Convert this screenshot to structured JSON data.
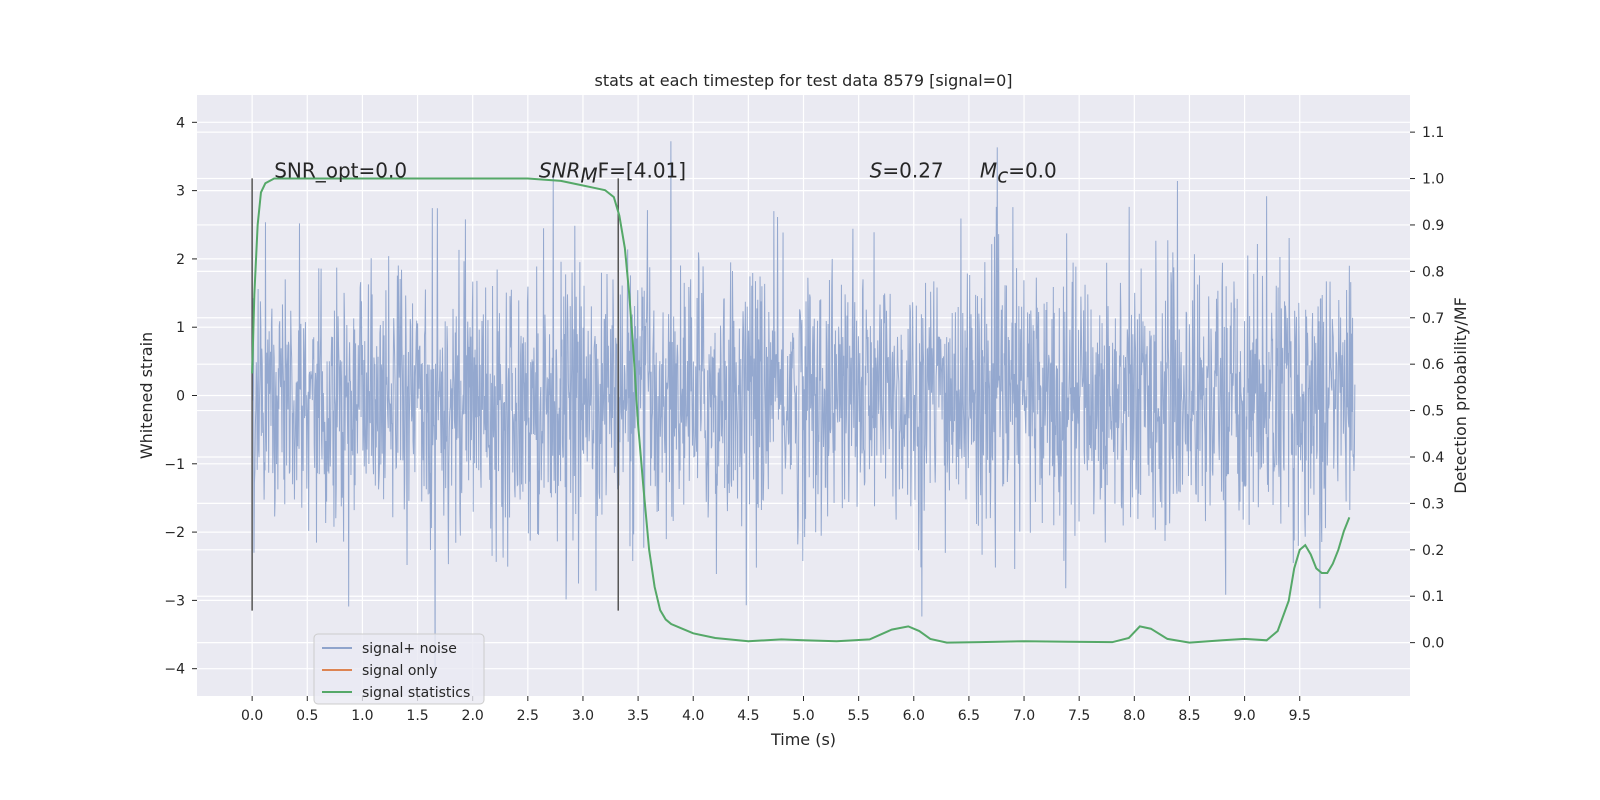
{
  "chart_data": {
    "type": "line",
    "title": "stats at each timestep for test data 8579 [signal=0]",
    "xlabel": "Time (s)",
    "ylabel": "Whitened strain",
    "ylabel_right": "Detection probability/MF",
    "xlim": [
      -0.5,
      10.5
    ],
    "ylim": [
      -4.4,
      4.4
    ],
    "ylim_right": [
      -0.115,
      1.18
    ],
    "xticks": [
      "0.0",
      "0.5",
      "1.0",
      "1.5",
      "2.0",
      "2.5",
      "3.0",
      "3.5",
      "4.0",
      "4.5",
      "5.0",
      "5.5",
      "6.0",
      "6.5",
      "7.0",
      "7.5",
      "8.0",
      "8.5",
      "9.0",
      "9.5"
    ],
    "xtick_values": [
      0,
      0.5,
      1,
      1.5,
      2,
      2.5,
      3,
      3.5,
      4,
      4.5,
      5,
      5.5,
      6,
      6.5,
      7,
      7.5,
      8,
      8.5,
      9,
      9.5
    ],
    "yticks_left": [
      "4",
      "3",
      "2",
      "1",
      "0",
      "−1",
      "−2",
      "−3",
      "−4"
    ],
    "ytick_values_left": [
      4,
      3,
      2,
      1,
      0,
      -1,
      -2,
      -3,
      -4
    ],
    "yticks_right": [
      "1.1",
      "1.0",
      "0.9",
      "0.8",
      "0.7",
      "0.6",
      "0.5",
      "0.4",
      "0.3",
      "0.2",
      "0.1",
      "0.0"
    ],
    "ytick_values_right": [
      1.1,
      1.0,
      0.9,
      0.8,
      0.7,
      0.6,
      0.5,
      0.4,
      0.3,
      0.2,
      0.1,
      0.0
    ],
    "grid": true,
    "legend_position": "lower-left",
    "colors": {
      "background": "#eaeaf2",
      "grid": "#ffffff",
      "signal_noise": "#8fa4cc",
      "signal_only": "#dd8452",
      "signal_statistics": "#55a868",
      "vline": "#555555"
    },
    "series": [
      {
        "name": "signal+ noise",
        "axis": "left",
        "description_values": {
          "t_start": 0.0,
          "t_end": 10.0,
          "typical_range": [
            -2.0,
            2.5
          ],
          "extremes": [
            -4.05,
            4.05
          ]
        }
      },
      {
        "name": "signal only",
        "axis": "left",
        "values": []
      },
      {
        "name": "signal statistics",
        "axis": "right",
        "x": [
          0.0,
          0.02,
          0.05,
          0.08,
          0.12,
          0.2,
          0.35,
          0.6,
          1.0,
          1.5,
          2.0,
          2.5,
          2.8,
          3.0,
          3.1,
          3.2,
          3.28,
          3.33,
          3.38,
          3.42,
          3.46,
          3.5,
          3.55,
          3.6,
          3.65,
          3.7,
          3.75,
          3.8,
          3.9,
          4.0,
          4.2,
          4.5,
          4.8,
          5.0,
          5.3,
          5.6,
          5.8,
          5.95,
          6.05,
          6.15,
          6.3,
          6.6,
          7.0,
          7.4,
          7.8,
          7.95,
          8.05,
          8.15,
          8.3,
          8.5,
          8.8,
          9.0,
          9.2,
          9.3,
          9.4,
          9.45,
          9.5,
          9.55,
          9.6,
          9.65,
          9.7,
          9.75,
          9.8,
          9.85,
          9.9,
          9.95
        ],
        "values": [
          0.58,
          0.75,
          0.9,
          0.97,
          0.99,
          1.0,
          1.0,
          1.0,
          1.0,
          1.0,
          1.0,
          1.0,
          0.995,
          0.985,
          0.98,
          0.975,
          0.96,
          0.92,
          0.85,
          0.75,
          0.62,
          0.47,
          0.33,
          0.2,
          0.12,
          0.07,
          0.05,
          0.04,
          0.03,
          0.02,
          0.01,
          0.003,
          0.007,
          0.005,
          0.003,
          0.007,
          0.028,
          0.035,
          0.025,
          0.008,
          0.0,
          0.001,
          0.003,
          0.002,
          0.001,
          0.01,
          0.035,
          0.03,
          0.008,
          0.0,
          0.005,
          0.008,
          0.005,
          0.025,
          0.09,
          0.16,
          0.2,
          0.21,
          0.19,
          0.16,
          0.15,
          0.15,
          0.17,
          0.2,
          0.24,
          0.27
        ]
      }
    ],
    "vlines": [
      0.0,
      3.32
    ],
    "annotations": [
      {
        "text": "SNR_opt=0.0",
        "x": 0.2,
        "y_right": 1.0,
        "italic_part": ""
      },
      {
        "text": "SNR",
        "sub": "M",
        "tail": "F=[4.01]",
        "x": 2.6,
        "y_right": 1.0
      },
      {
        "text": "S",
        "tail": "=0.27",
        "x": 5.6,
        "y_right": 1.0
      },
      {
        "text": "M",
        "sub": "c",
        "tail": "=0.0",
        "x": 6.6,
        "y_right": 1.0
      }
    ]
  }
}
